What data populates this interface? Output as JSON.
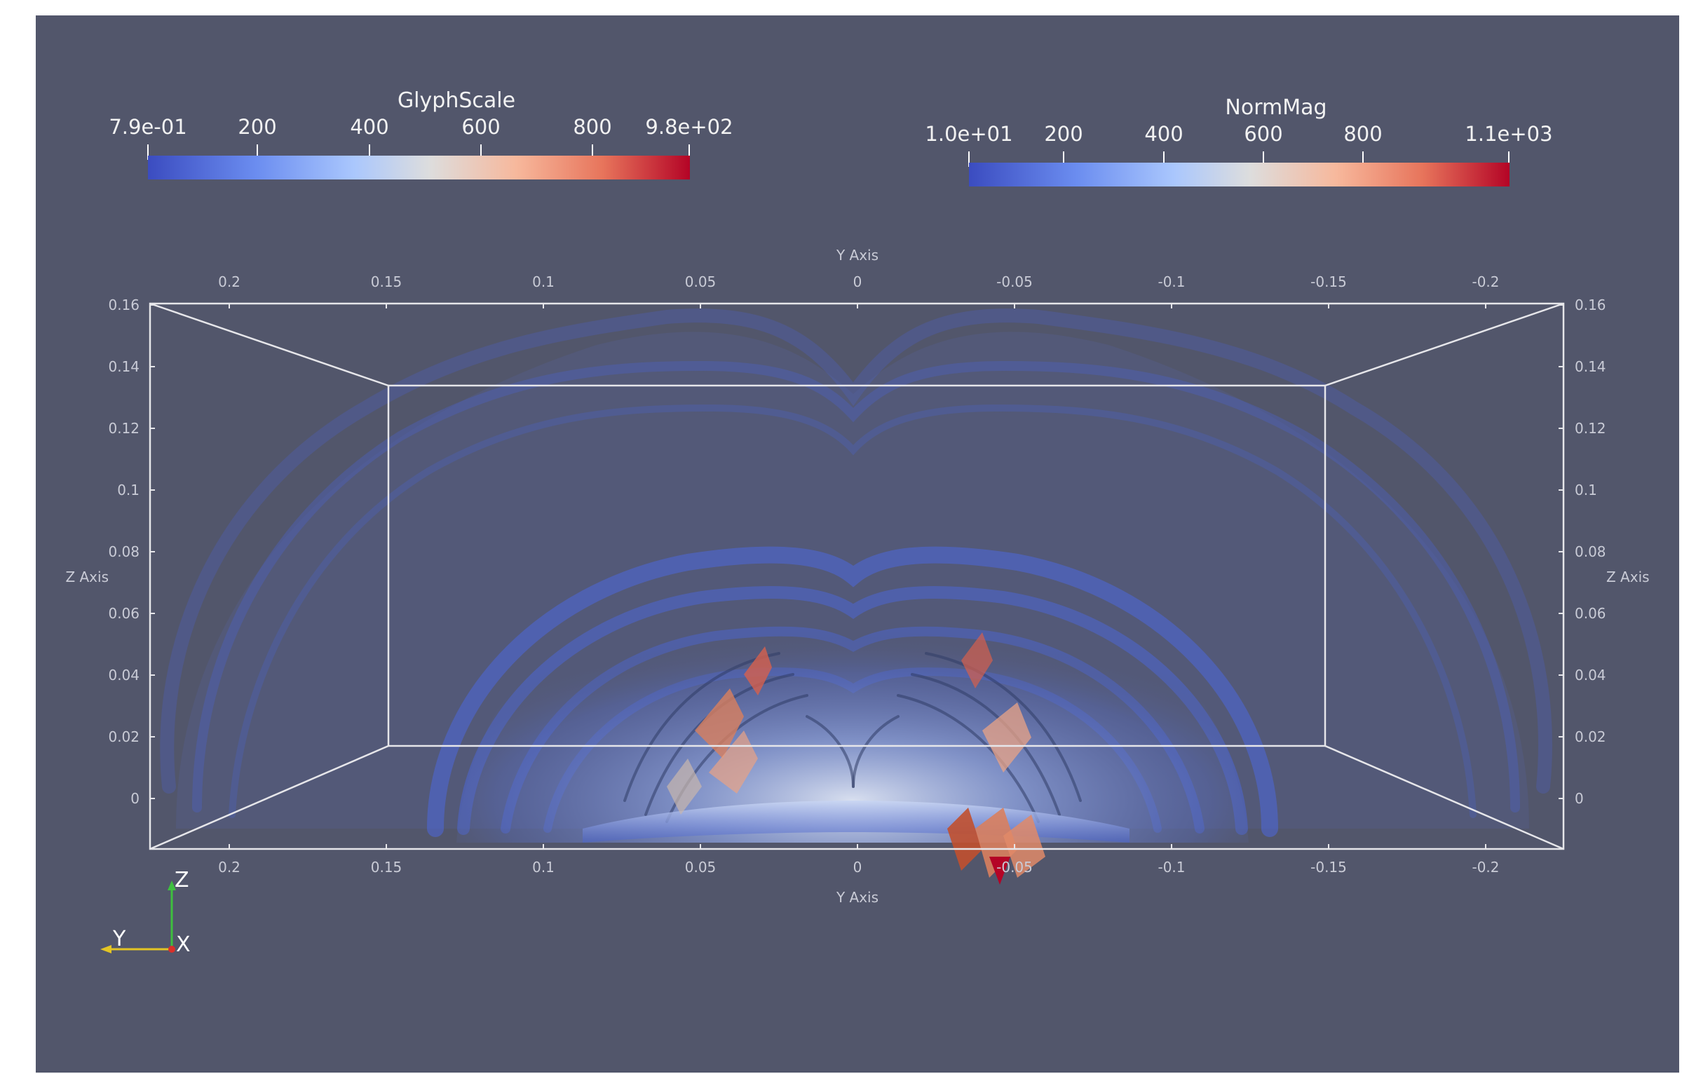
{
  "colorbars": {
    "glyph_scale": {
      "title": "GlyphScale",
      "min_label": "7.9e-01",
      "max_label": "9.8e+02",
      "ticks": [
        "200",
        "400",
        "600",
        "800"
      ]
    },
    "norm_mag": {
      "title": "NormMag",
      "min_label": "1.0e+01",
      "max_label": "1.1e+03",
      "ticks": [
        "200",
        "400",
        "600",
        "800"
      ]
    }
  },
  "axes": {
    "y_axis_title": "Y Axis",
    "z_axis_title": "Z Axis",
    "y_ticks": [
      "0.2",
      "0.15",
      "0.1",
      "0.05",
      "0",
      "-0.05",
      "-0.1",
      "-0.15",
      "-0.2"
    ],
    "z_ticks": [
      "0.16",
      "0.14",
      "0.12",
      "0.1",
      "0.08",
      "0.06",
      "0.04",
      "0.02",
      "0"
    ]
  },
  "orientation_axes": {
    "z": "Z",
    "y": "Y",
    "x": "X"
  },
  "colors": {
    "background": "#52566b",
    "cool": "#3b4cc0",
    "mid": "#dddddd",
    "warm": "#b40426"
  }
}
